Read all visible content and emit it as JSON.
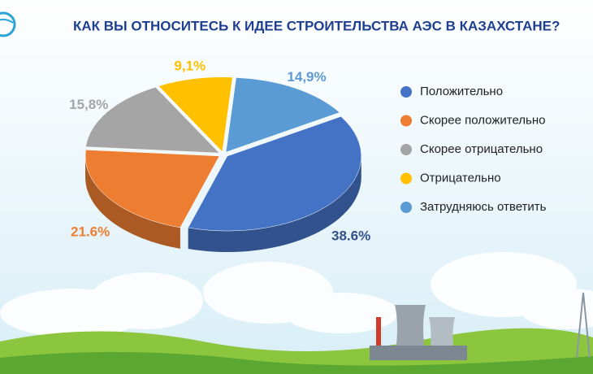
{
  "chart_data": {
    "type": "pie",
    "title": "КАК ВЫ ОТНОСИТЕСЬ К ИДЕЕ СТРОИТЕЛЬСТВА АЭС В КАЗАХСТАНЕ?",
    "categories": [
      "Положительно",
      "Скорее положительно",
      "Скорее отрицательно",
      "Отрицательно",
      "Затрудняюсь ответить"
    ],
    "values": [
      38.6,
      21.6,
      15.8,
      9.1,
      14.9
    ],
    "value_labels": [
      "38.6%",
      "21.6%",
      "15,8%",
      "9,1%",
      "14,9%"
    ],
    "colors": [
      "#4472c4",
      "#ed7d31",
      "#a5a5a5",
      "#ffc000",
      "#5b9bd5"
    ]
  }
}
